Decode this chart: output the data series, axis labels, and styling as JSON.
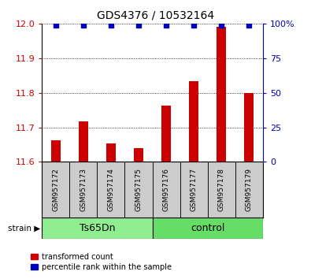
{
  "title": "GDS4376 / 10532164",
  "samples": [
    "GSM957172",
    "GSM957173",
    "GSM957174",
    "GSM957175",
    "GSM957176",
    "GSM957177",
    "GSM957178",
    "GSM957179"
  ],
  "red_values": [
    11.663,
    11.718,
    11.654,
    11.64,
    11.763,
    11.833,
    11.99,
    11.8
  ],
  "ylim": [
    11.6,
    12.0
  ],
  "yticks": [
    11.6,
    11.7,
    11.8,
    11.9,
    12.0
  ],
  "right_yticks": [
    0,
    25,
    50,
    75,
    100
  ],
  "right_ytick_labels": [
    "0",
    "25",
    "50",
    "75",
    "100%"
  ],
  "group1_label": "Ts65Dn",
  "group2_label": "control",
  "strain_label": "strain",
  "legend_red": "transformed count",
  "legend_blue": "percentile rank within the sample",
  "bar_color": "#cc0000",
  "blue_color": "#0000bb",
  "group1_color": "#90ee90",
  "group2_color": "#66dd66",
  "bg_color": "#cccccc",
  "bar_width": 0.35
}
